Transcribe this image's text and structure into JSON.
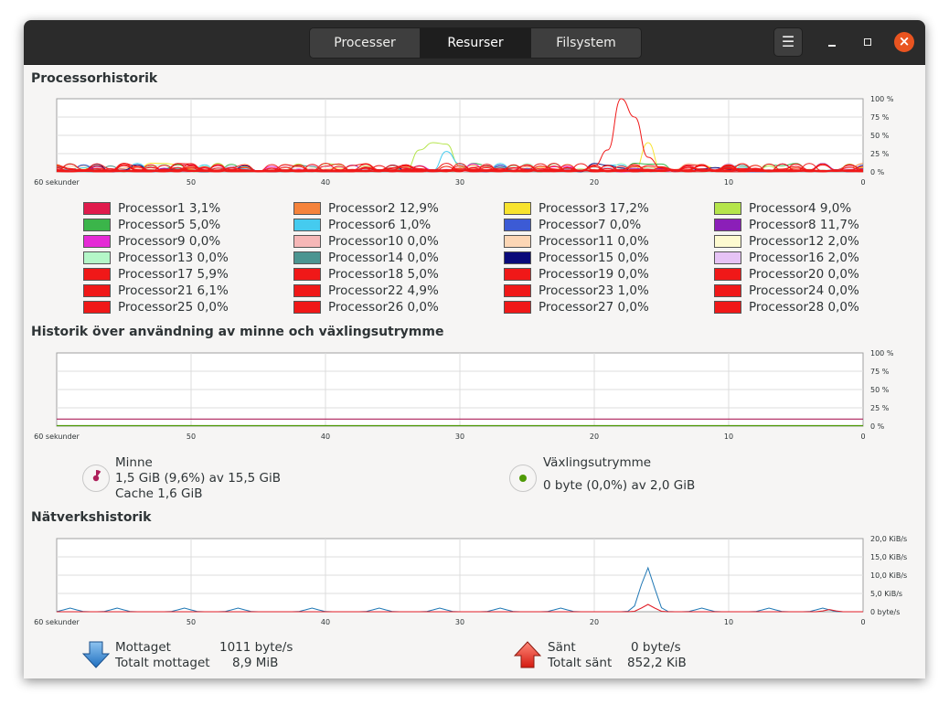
{
  "tabs": [
    {
      "label": "Processer",
      "active": false
    },
    {
      "label": "Resurser",
      "active": true
    },
    {
      "label": "Filsystem",
      "active": false
    }
  ],
  "window_buttons": {
    "menu_icon": "hamburger-icon",
    "minimize_icon": "minimize-icon",
    "maximize_icon": "maximize-icon",
    "close_icon": "close-icon"
  },
  "cpu": {
    "title": "Processorhistorik",
    "y_ticks": [
      "100 %",
      "75 %",
      "50 %",
      "25 %",
      "0 %"
    ],
    "x_ticks": [
      "60 sekunder",
      "50",
      "40",
      "30",
      "20",
      "10",
      "0"
    ],
    "processors": [
      {
        "name": "Processor1",
        "value": "3,1%",
        "color": "#e01b4c"
      },
      {
        "name": "Processor2",
        "value": "12,9%",
        "color": "#f5833b"
      },
      {
        "name": "Processor3",
        "value": "17,2%",
        "color": "#f8e32e"
      },
      {
        "name": "Processor4",
        "value": "9,0%",
        "color": "#b5e54b"
      },
      {
        "name": "Processor5",
        "value": "5,0%",
        "color": "#3bb54a"
      },
      {
        "name": "Processor6",
        "value": "1,0%",
        "color": "#45cbef"
      },
      {
        "name": "Processor7",
        "value": "0,0%",
        "color": "#3c5bd5"
      },
      {
        "name": "Processor8",
        "value": "11,7%",
        "color": "#8b1fb8"
      },
      {
        "name": "Processor9",
        "value": "0,0%",
        "color": "#e52ad6"
      },
      {
        "name": "Processor10",
        "value": "0,0%",
        "color": "#f6b7b7"
      },
      {
        "name": "Processor11",
        "value": "0,0%",
        "color": "#fcd6b5"
      },
      {
        "name": "Processor12",
        "value": "2,0%",
        "color": "#fdfad0"
      },
      {
        "name": "Processor13",
        "value": "0,0%",
        "color": "#b4f7c8"
      },
      {
        "name": "Processor14",
        "value": "0,0%",
        "color": "#4b9591"
      },
      {
        "name": "Processor15",
        "value": "0,0%",
        "color": "#0a0a7a"
      },
      {
        "name": "Processor16",
        "value": "2,0%",
        "color": "#e6c3f5"
      },
      {
        "name": "Processor17",
        "value": "5,9%",
        "color": "#f01818"
      },
      {
        "name": "Processor18",
        "value": "5,0%",
        "color": "#f01818"
      },
      {
        "name": "Processor19",
        "value": "0,0%",
        "color": "#f01818"
      },
      {
        "name": "Processor20",
        "value": "0,0%",
        "color": "#f01818"
      },
      {
        "name": "Processor21",
        "value": "6,1%",
        "color": "#f01818"
      },
      {
        "name": "Processor22",
        "value": "4,9%",
        "color": "#f01818"
      },
      {
        "name": "Processor23",
        "value": "1,0%",
        "color": "#f01818"
      },
      {
        "name": "Processor24",
        "value": "0,0%",
        "color": "#f01818"
      },
      {
        "name": "Processor25",
        "value": "0,0%",
        "color": "#f01818"
      },
      {
        "name": "Processor26",
        "value": "0,0%",
        "color": "#f01818"
      },
      {
        "name": "Processor27",
        "value": "0,0%",
        "color": "#f01818"
      },
      {
        "name": "Processor28",
        "value": "0,0%",
        "color": "#f01818"
      }
    ]
  },
  "memory": {
    "title": "Historik över användning av minne och växlingsutrymme",
    "y_ticks": [
      "100 %",
      "75 %",
      "50 %",
      "25 %",
      "0 %"
    ],
    "x_ticks": [
      "60 sekunder",
      "50",
      "40",
      "30",
      "20",
      "10",
      "0"
    ],
    "ram": {
      "label": "Minne",
      "usage": "1,5 GiB (9,6%) av 15,5 GiB",
      "cache": "Cache 1,6 GiB",
      "color": "#ad1f5a",
      "fraction": 0.096
    },
    "swap": {
      "label": "Växlingsutrymme",
      "usage": "0 byte (0,0%) av 2,0 GiB",
      "color": "#4e9a06",
      "fraction": 0.0
    }
  },
  "network": {
    "title": "Nätverkshistorik",
    "y_ticks": [
      "20,0 KiB/s",
      "15,0 KiB/s",
      "10,0 KiB/s",
      "5,0 KiB/s",
      "0 byte/s"
    ],
    "x_ticks": [
      "60 sekunder",
      "50",
      "40",
      "30",
      "20",
      "10",
      "0"
    ],
    "received": {
      "label": "Mottaget",
      "rate": "1011 byte/s",
      "total_label": "Totalt mottaget",
      "total": "8,9 MiB",
      "color": "#1f77b4"
    },
    "sent": {
      "label": "Sänt",
      "rate": "0 byte/s",
      "total_label": "Totalt sänt",
      "total": "852,2 KiB",
      "color": "#e01b24"
    }
  }
}
